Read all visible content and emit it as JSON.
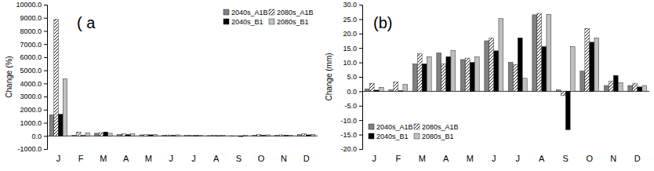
{
  "chart_data": [
    {
      "type": "bar",
      "title": "( a",
      "y_label": "Change (%)",
      "categories": [
        "J",
        "F",
        "M",
        "A",
        "M",
        "J",
        "J",
        "A",
        "S",
        "O",
        "N",
        "D"
      ],
      "series": [
        {
          "name": "2040s_A1B",
          "color": "#808080",
          "values": [
            1600,
            50,
            200,
            100,
            80,
            50,
            30,
            20,
            10,
            50,
            40,
            100
          ]
        },
        {
          "name": "2080s_A1B",
          "color": "#ffffff",
          "marker": "hatch",
          "values": [
            8900,
            300,
            250,
            150,
            100,
            70,
            40,
            30,
            -30,
            100,
            80,
            150
          ]
        },
        {
          "name": "2040s_B1",
          "color": "#000000",
          "values": [
            1650,
            30,
            300,
            100,
            80,
            40,
            30,
            20,
            -50,
            50,
            50,
            80
          ]
        },
        {
          "name": "2080s_B1",
          "color": "#c0c0c0",
          "values": [
            4350,
            250,
            200,
            150,
            100,
            80,
            30,
            30,
            30,
            80,
            60,
            120
          ]
        }
      ],
      "ylim": [
        -1000,
        10000
      ],
      "yticks": [
        {
          "value": -1000,
          "label": "-1000.0"
        },
        {
          "value": 0,
          "label": "0.0"
        },
        {
          "value": 1000,
          "label": "1000.0"
        },
        {
          "value": 2000,
          "label": "2000.0"
        },
        {
          "value": 3000,
          "label": "3000.0"
        },
        {
          "value": 4000,
          "label": "4000.0"
        },
        {
          "value": 5000,
          "label": "5000.0"
        },
        {
          "value": 6000,
          "label": "6000.0"
        },
        {
          "value": 7000,
          "label": "7000.0"
        },
        {
          "value": 8000,
          "label": "8000.0"
        },
        {
          "value": 9000,
          "label": "9000.0"
        },
        {
          "value": 10000,
          "label": "10000.0"
        }
      ],
      "legend": "upper right"
    },
    {
      "type": "bar",
      "title": "(b)",
      "y_label": "Change (mm)",
      "categories": [
        "J",
        "F",
        "M",
        "A",
        "M",
        "J",
        "J",
        "A",
        "S",
        "O",
        "N",
        "D"
      ],
      "series": [
        {
          "name": "2040s_A1B",
          "color": "#808080",
          "values": [
            0.8,
            0.5,
            9.5,
            13.3,
            11,
            17.5,
            10,
            26.5,
            0.5,
            7,
            2,
            2
          ]
        },
        {
          "name": "2080s_A1B",
          "color": "#ffffff",
          "marker": "hatch",
          "values": [
            2.8,
            3.2,
            13,
            9.5,
            11.5,
            18.5,
            9.3,
            27,
            -1.5,
            21.8,
            3.5,
            2.8
          ]
        },
        {
          "name": "2040s_B1",
          "color": "#000000",
          "values": [
            0.4,
            0.2,
            9.5,
            12,
            10,
            14,
            18.5,
            15.5,
            -13.3,
            17,
            5.5,
            1.5
          ]
        },
        {
          "name": "2080s_B1",
          "color": "#c0c0c0",
          "values": [
            1.4,
            2.4,
            12,
            14.2,
            12,
            25.2,
            4.5,
            26.7,
            15.5,
            18.5,
            3,
            2
          ]
        }
      ],
      "ylim": [
        -20,
        30
      ],
      "yticks": [
        {
          "value": -20,
          "label": "-20.0"
        },
        {
          "value": -15,
          "label": "-15.0"
        },
        {
          "value": -10,
          "label": "-10.0"
        },
        {
          "value": -5,
          "label": "-5.0"
        },
        {
          "value": 0,
          "label": "0.0"
        },
        {
          "value": 5,
          "label": "5.0"
        },
        {
          "value": 10,
          "label": "10.0"
        },
        {
          "value": 15,
          "label": "15.0"
        },
        {
          "value": 20,
          "label": "20.0"
        },
        {
          "value": 25,
          "label": "25.0"
        },
        {
          "value": 30,
          "label": "30.0"
        }
      ],
      "legend": "lower left"
    }
  ]
}
